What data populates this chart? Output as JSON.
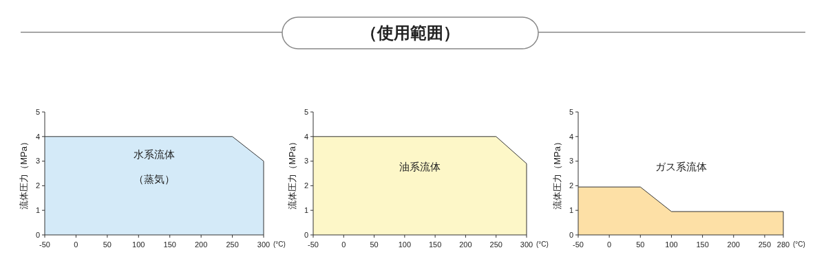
{
  "chart_data": [
    {
      "type": "other",
      "title": "（使用範囲）"
    },
    {
      "type": "area",
      "xlabel": "(°C)",
      "ylabel": "流体圧力（MPa）",
      "x": [
        -50,
        250,
        300
      ],
      "values": [
        4,
        4,
        3
      ],
      "color": "#d4eaf8",
      "xlim": [
        -50,
        300
      ],
      "xticks": [
        -50,
        0,
        50,
        100,
        150,
        200,
        250,
        300
      ],
      "ylim": [
        0,
        5
      ],
      "yticks": [
        0,
        1,
        2,
        3,
        4,
        5
      ],
      "annotations": [
        "水系流体",
        "（蒸気）"
      ]
    },
    {
      "type": "area",
      "xlabel": "(°C)",
      "ylabel": "流体圧力（MPa）",
      "x": [
        -50,
        250,
        300
      ],
      "values": [
        4,
        4,
        2.9
      ],
      "color": "#fdf7c8",
      "xlim": [
        -50,
        300
      ],
      "xticks": [
        -50,
        0,
        50,
        100,
        150,
        200,
        250,
        300
      ],
      "ylim": [
        0,
        5
      ],
      "yticks": [
        0,
        1,
        2,
        3,
        4,
        5
      ],
      "annotations": [
        "油系流体"
      ]
    },
    {
      "type": "area",
      "xlabel": "(°C)",
      "ylabel": "流体圧力（MPa）",
      "x": [
        -50,
        50,
        100,
        280
      ],
      "values": [
        1.95,
        1.95,
        0.95,
        0.95
      ],
      "color": "#fde0a6",
      "xlim": [
        -50,
        280
      ],
      "xticks": [
        -50,
        0,
        50,
        100,
        150,
        200,
        250,
        280
      ],
      "ylim": [
        0,
        5
      ],
      "yticks": [
        0,
        1,
        2,
        3,
        4,
        5
      ],
      "annotations": [
        "ガス系流体"
      ]
    }
  ]
}
